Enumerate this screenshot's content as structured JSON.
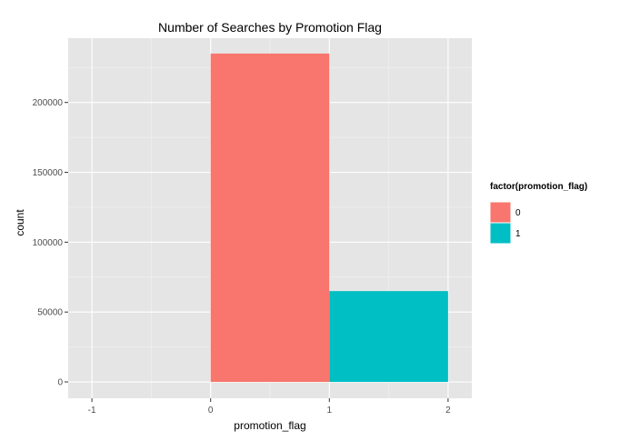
{
  "chart_data": {
    "type": "bar",
    "title": "Number of Searches by Promotion Flag",
    "xlabel": "promotion_flag",
    "ylabel": "count",
    "xlim": [
      -1.2,
      2.2
    ],
    "ylim": [
      -11700,
      246000
    ],
    "xticks": [
      -1,
      0,
      1,
      2
    ],
    "yticks": [
      0,
      50000,
      100000,
      150000,
      200000
    ],
    "grid": true,
    "bars": [
      {
        "x0": 0,
        "x1": 1,
        "value": 235000,
        "group": "0",
        "color": "#F8766D"
      },
      {
        "x0": 1,
        "x1": 2,
        "value": 65000,
        "group": "1",
        "color": "#00BFC4"
      }
    ],
    "legend": {
      "title": "factor(promotion_flag)",
      "placement": "right",
      "entries": [
        {
          "label": "0",
          "color": "#F8766D"
        },
        {
          "label": "1",
          "color": "#00BFC4"
        }
      ]
    },
    "colors": {
      "panel": "#E5E5E5",
      "grid_major": "#FFFFFF",
      "grid_minor": "#F2F2F2",
      "tick_label": "#4D4D4D"
    }
  }
}
